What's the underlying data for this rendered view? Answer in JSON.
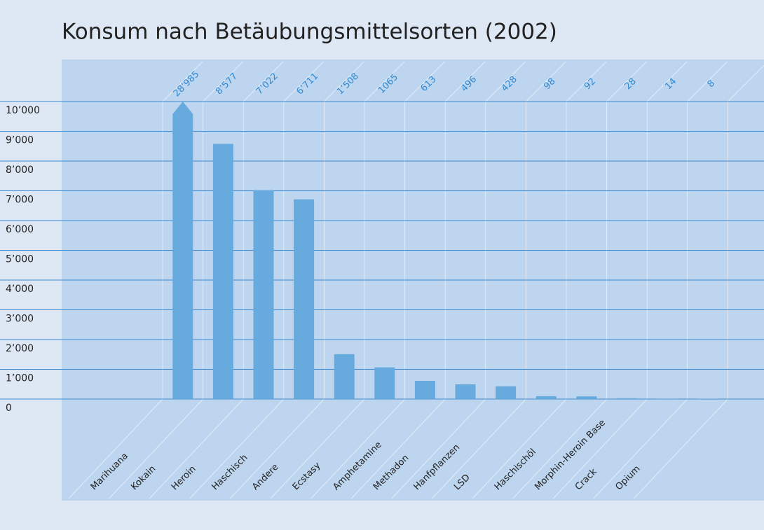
{
  "chart_data": {
    "type": "bar",
    "title": "Konsum nach Betäubungsmittelsorten (2002)",
    "categories": [
      "Marihuana",
      "Kokain",
      "Heroin",
      "Haschisch",
      "Andere",
      "Ecstasy",
      "Amphetamine",
      "Methadon",
      "Hanfpflanzen",
      "LSD",
      "Haschischöl",
      "Morphin-Heroin Base",
      "Crack",
      "Opium"
    ],
    "values": [
      28985,
      8577,
      7022,
      6711,
      1508,
      1065,
      613,
      496,
      428,
      98,
      92,
      28,
      14,
      8
    ],
    "value_labels": [
      "28’985",
      "8’577",
      "7’022",
      "6’711",
      "1’508",
      "1065",
      "613",
      "496",
      "428",
      "98",
      "92",
      "28",
      "14",
      "8"
    ],
    "color": "#67abde",
    "ylim": [
      0,
      10000
    ],
    "yticks": [
      0,
      {
        "value": 1000,
        "label": "1’000"
      },
      {
        "value": 2000,
        "label": "2’000"
      },
      {
        "value": 3000,
        "label": "3’000"
      },
      {
        "value": 4000,
        "label": "4’000"
      },
      {
        "value": 5000,
        "label": "5’000"
      },
      {
        "value": 6000,
        "label": "6’000"
      },
      {
        "value": 7000,
        "label": "7’000"
      },
      {
        "value": 8000,
        "label": "8’000"
      },
      {
        "value": 9000,
        "label": "9’000"
      },
      {
        "value": 10000,
        "label": "10’000"
      }
    ],
    "grid": true
  }
}
